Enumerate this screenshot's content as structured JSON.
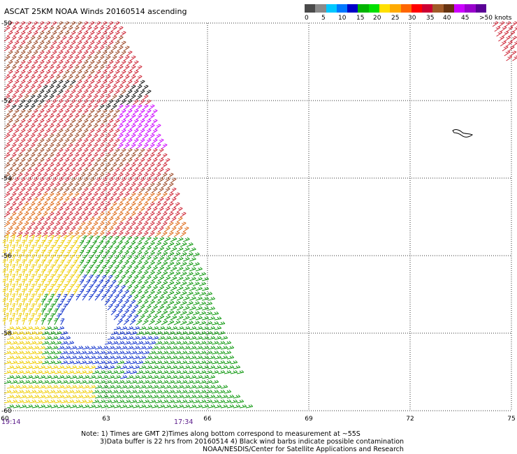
{
  "title": "ASCAT 25KM NOAA Winds 20160514 ascending",
  "legend": {
    "colors": [
      "#4a4a4a",
      "#8a8a8a",
      "#00c8ff",
      "#0078ff",
      "#0000c8",
      "#00b400",
      "#00e000",
      "#ffe000",
      "#ffaa00",
      "#ff6600",
      "#ff0000",
      "#cc0033",
      "#a05a28",
      "#663311",
      "#cc00ff",
      "#9900cc",
      "#5a0096"
    ],
    "labels": [
      "0",
      "5",
      "10",
      "15",
      "20",
      "25",
      "30",
      "35",
      "40",
      "45",
      ">50 knots"
    ]
  },
  "axes": {
    "lat_labels": [
      "-50",
      "-52",
      "-54",
      "-56",
      "-58",
      "-60"
    ],
    "lon_labels": [
      "60",
      "63",
      "66",
      "69",
      "72",
      "75"
    ]
  },
  "time_labels": {
    "left": "19:14",
    "mid": "17:34"
  },
  "note": {
    "line1": "Note: 1) Times are GMT 2)Times along bottom correspond to measurement at ~55S",
    "line2": "3)Data buffer is 22 hrs from 20160514 4) Black wind barbs indicate possible contamination",
    "line3": "NOAA/NESDIS/Center for Satellite Applications and Research"
  },
  "map_colors": {
    "red": "#cc2233",
    "brown": "#994422",
    "dark": "#111111",
    "orange": "#dd6611",
    "yellow": "#eecc00",
    "green": "#119911",
    "blue": "#1133cc",
    "magenta": "#cc00ff",
    "grid": "#333333"
  }
}
